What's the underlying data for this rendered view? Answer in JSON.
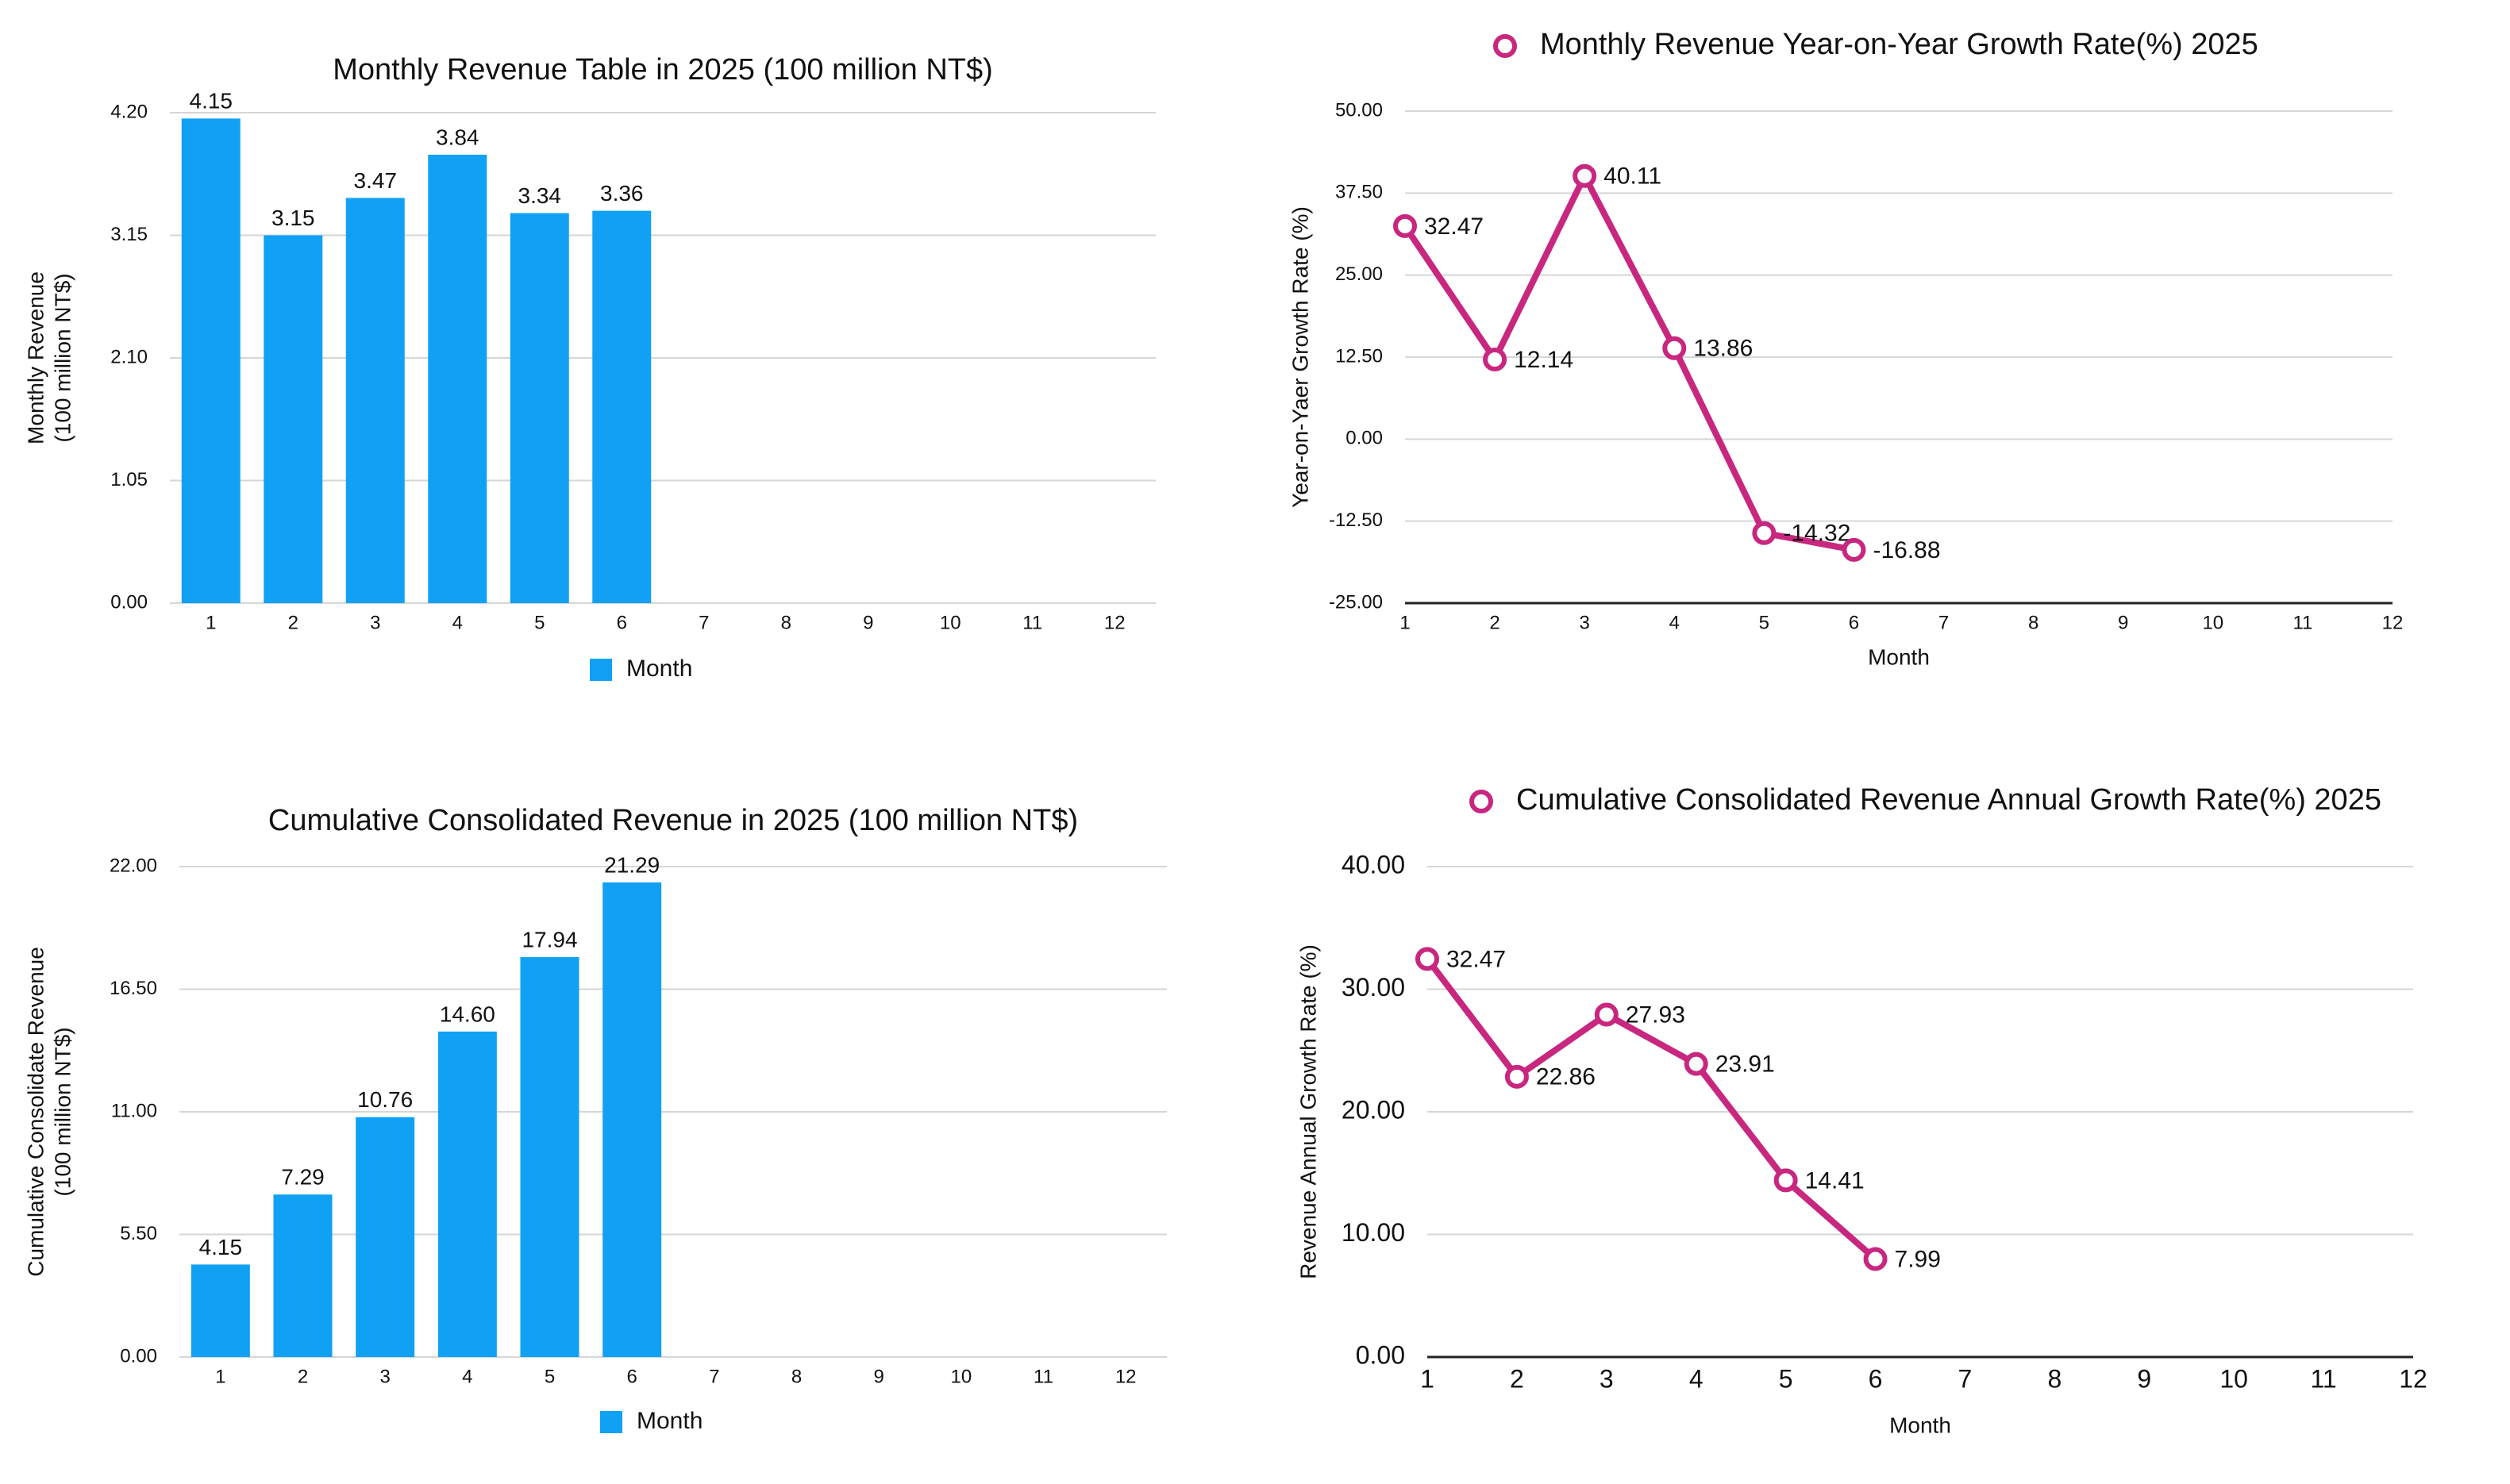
{
  "chart_data": [
    {
      "type": "bar",
      "title": "Monthly Revenue Table in 2025 (100 million NT$)",
      "y_label": [
        "Monthly Revenue",
        "(100 million NT$)"
      ],
      "categories": [
        1,
        2,
        3,
        4,
        5,
        6,
        7,
        8,
        9,
        10,
        11,
        12
      ],
      "series": [
        {
          "name": "Month",
          "color": "#10a1f5",
          "values": [
            4.15,
            3.15,
            3.47,
            3.84,
            3.34,
            3.36,
            null,
            null,
            null,
            null,
            null,
            null
          ]
        }
      ],
      "ylim": [
        0,
        4.2
      ],
      "yticks": [
        {
          "value": 0,
          "label": "0.00"
        },
        {
          "value": 1.05,
          "label": "1.05"
        },
        {
          "value": 2.1,
          "label": "2.10"
        },
        {
          "value": 3.15,
          "label": "3.15"
        },
        {
          "value": 4.2,
          "label": "4.20"
        }
      ],
      "grid": true,
      "legend": "bottom"
    },
    {
      "type": "line",
      "y_label": [
        "Year-on-Yaer Growth Rate (%)"
      ],
      "x_label": "Month",
      "categories": [
        1,
        2,
        3,
        4,
        5,
        6,
        7,
        8,
        9,
        10,
        11,
        12
      ],
      "series": [
        {
          "name": "Monthly Revenue Year-on-Year Growth Rate(%) 2025",
          "color": "#c8277f",
          "values": [
            32.47,
            12.14,
            40.11,
            13.86,
            -14.32,
            -16.88,
            null,
            null,
            null,
            null,
            null,
            null
          ]
        }
      ],
      "ylim": [
        -25,
        50
      ],
      "yticks": [
        {
          "value": -25,
          "label": "-25.00"
        },
        {
          "value": -12.5,
          "label": "-12.50"
        },
        {
          "value": 0,
          "label": "0.00"
        },
        {
          "value": 12.5,
          "label": "12.50"
        },
        {
          "value": 25,
          "label": "25.00"
        },
        {
          "value": 37.5,
          "label": "37.50"
        },
        {
          "value": 50,
          "label": "50.00"
        }
      ],
      "grid": true,
      "legend": "top"
    },
    {
      "type": "bar",
      "title": "Cumulative Consolidated Revenue in 2025 (100 million NT$)",
      "y_label": [
        "Cumulative Consolidate Revenue",
        "(100 million NT$)"
      ],
      "categories": [
        1,
        2,
        3,
        4,
        5,
        6,
        7,
        8,
        9,
        10,
        11,
        12
      ],
      "series": [
        {
          "name": "Month",
          "color": "#10a1f5",
          "values": [
            4.15,
            7.29,
            10.76,
            14.6,
            17.94,
            21.29,
            null,
            null,
            null,
            null,
            null,
            null
          ]
        }
      ],
      "value_labels": [
        "4.15",
        "7.29",
        "10.76",
        "14.60",
        "17.94",
        "21.29",
        null,
        null,
        null,
        null,
        null,
        null
      ],
      "ylim": [
        0,
        22
      ],
      "yticks": [
        {
          "value": 0,
          "label": "0.00"
        },
        {
          "value": 5.5,
          "label": "5.50"
        },
        {
          "value": 11,
          "label": "11.00"
        },
        {
          "value": 16.5,
          "label": "16.50"
        },
        {
          "value": 22,
          "label": "22.00"
        }
      ],
      "grid": true,
      "legend": "bottom"
    },
    {
      "type": "line",
      "y_label": [
        "Revenue Annual Growth Rate (%)"
      ],
      "x_label": "Month",
      "categories": [
        1,
        2,
        3,
        4,
        5,
        6,
        7,
        8,
        9,
        10,
        11,
        12
      ],
      "series": [
        {
          "name": "Cumulative Consolidated Revenue Annual Growth Rate(%) 2025",
          "color": "#c8277f",
          "values": [
            32.47,
            22.86,
            27.93,
            23.91,
            14.41,
            7.99,
            null,
            null,
            null,
            null,
            null,
            null
          ]
        }
      ],
      "ylim": [
        0,
        40
      ],
      "yticks": [
        {
          "value": 0,
          "label": "0.00"
        },
        {
          "value": 10,
          "label": "10.00"
        },
        {
          "value": 20,
          "label": "20.00"
        },
        {
          "value": 30,
          "label": "30.00"
        },
        {
          "value": 40,
          "label": "40.00"
        }
      ],
      "grid": true,
      "legend": "top"
    }
  ]
}
